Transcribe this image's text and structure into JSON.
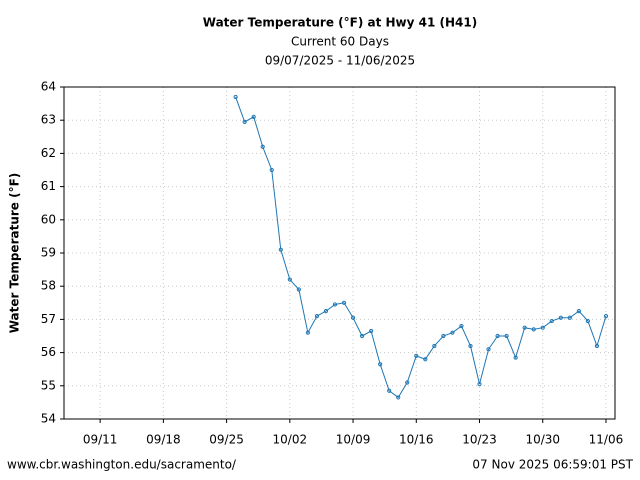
{
  "chart_data": {
    "type": "line",
    "title": "Water Temperature (°F) at Hwy 41 (H41)",
    "subtitle": "Current 60 Days",
    "date_range": "09/07/2025 - 11/06/2025",
    "y_label": "Water Temperature (°F)",
    "source": "www.cbr.washington.edu/sacramento/",
    "timestamp": "07 Nov 2025 06:59:01 PST",
    "x": [
      "09/26",
      "09/27",
      "09/28",
      "09/29",
      "09/30",
      "10/01",
      "10/02",
      "10/03",
      "10/04",
      "10/05",
      "10/06",
      "10/07",
      "10/08",
      "10/09",
      "10/10",
      "10/11",
      "10/12",
      "10/13",
      "10/14",
      "10/15",
      "10/16",
      "10/17",
      "10/18",
      "10/19",
      "10/20",
      "10/21",
      "10/22",
      "10/23",
      "10/24",
      "10/25",
      "10/26",
      "10/27",
      "10/28",
      "10/29",
      "10/30",
      "10/31",
      "11/01",
      "11/02",
      "11/03",
      "11/04",
      "11/05",
      "11/06"
    ],
    "series": [
      {
        "name": "Water Temperature",
        "color": "#1f77b4",
        "values": [
          63.7,
          62.95,
          63.1,
          62.2,
          61.5,
          59.1,
          58.2,
          57.9,
          56.6,
          57.1,
          57.25,
          57.45,
          57.5,
          57.05,
          56.5,
          56.65,
          55.65,
          54.85,
          54.65,
          55.1,
          55.9,
          55.8,
          56.2,
          56.5,
          56.6,
          56.8,
          56.2,
          55.05,
          56.1,
          56.5,
          56.5,
          55.85,
          56.75,
          56.7,
          56.75,
          56.95,
          57.05,
          57.05,
          57.25,
          56.95,
          56.2,
          57.1
        ]
      }
    ],
    "xlim": [
      "09/07",
      "11/07"
    ],
    "xticks": [
      "09/11",
      "09/18",
      "09/25",
      "10/02",
      "10/09",
      "10/16",
      "10/23",
      "10/30",
      "11/06"
    ],
    "ylim": [
      54,
      64
    ],
    "yticks": [
      54,
      55,
      56,
      57,
      58,
      59,
      60,
      61,
      62,
      63,
      64
    ],
    "grid": true
  }
}
